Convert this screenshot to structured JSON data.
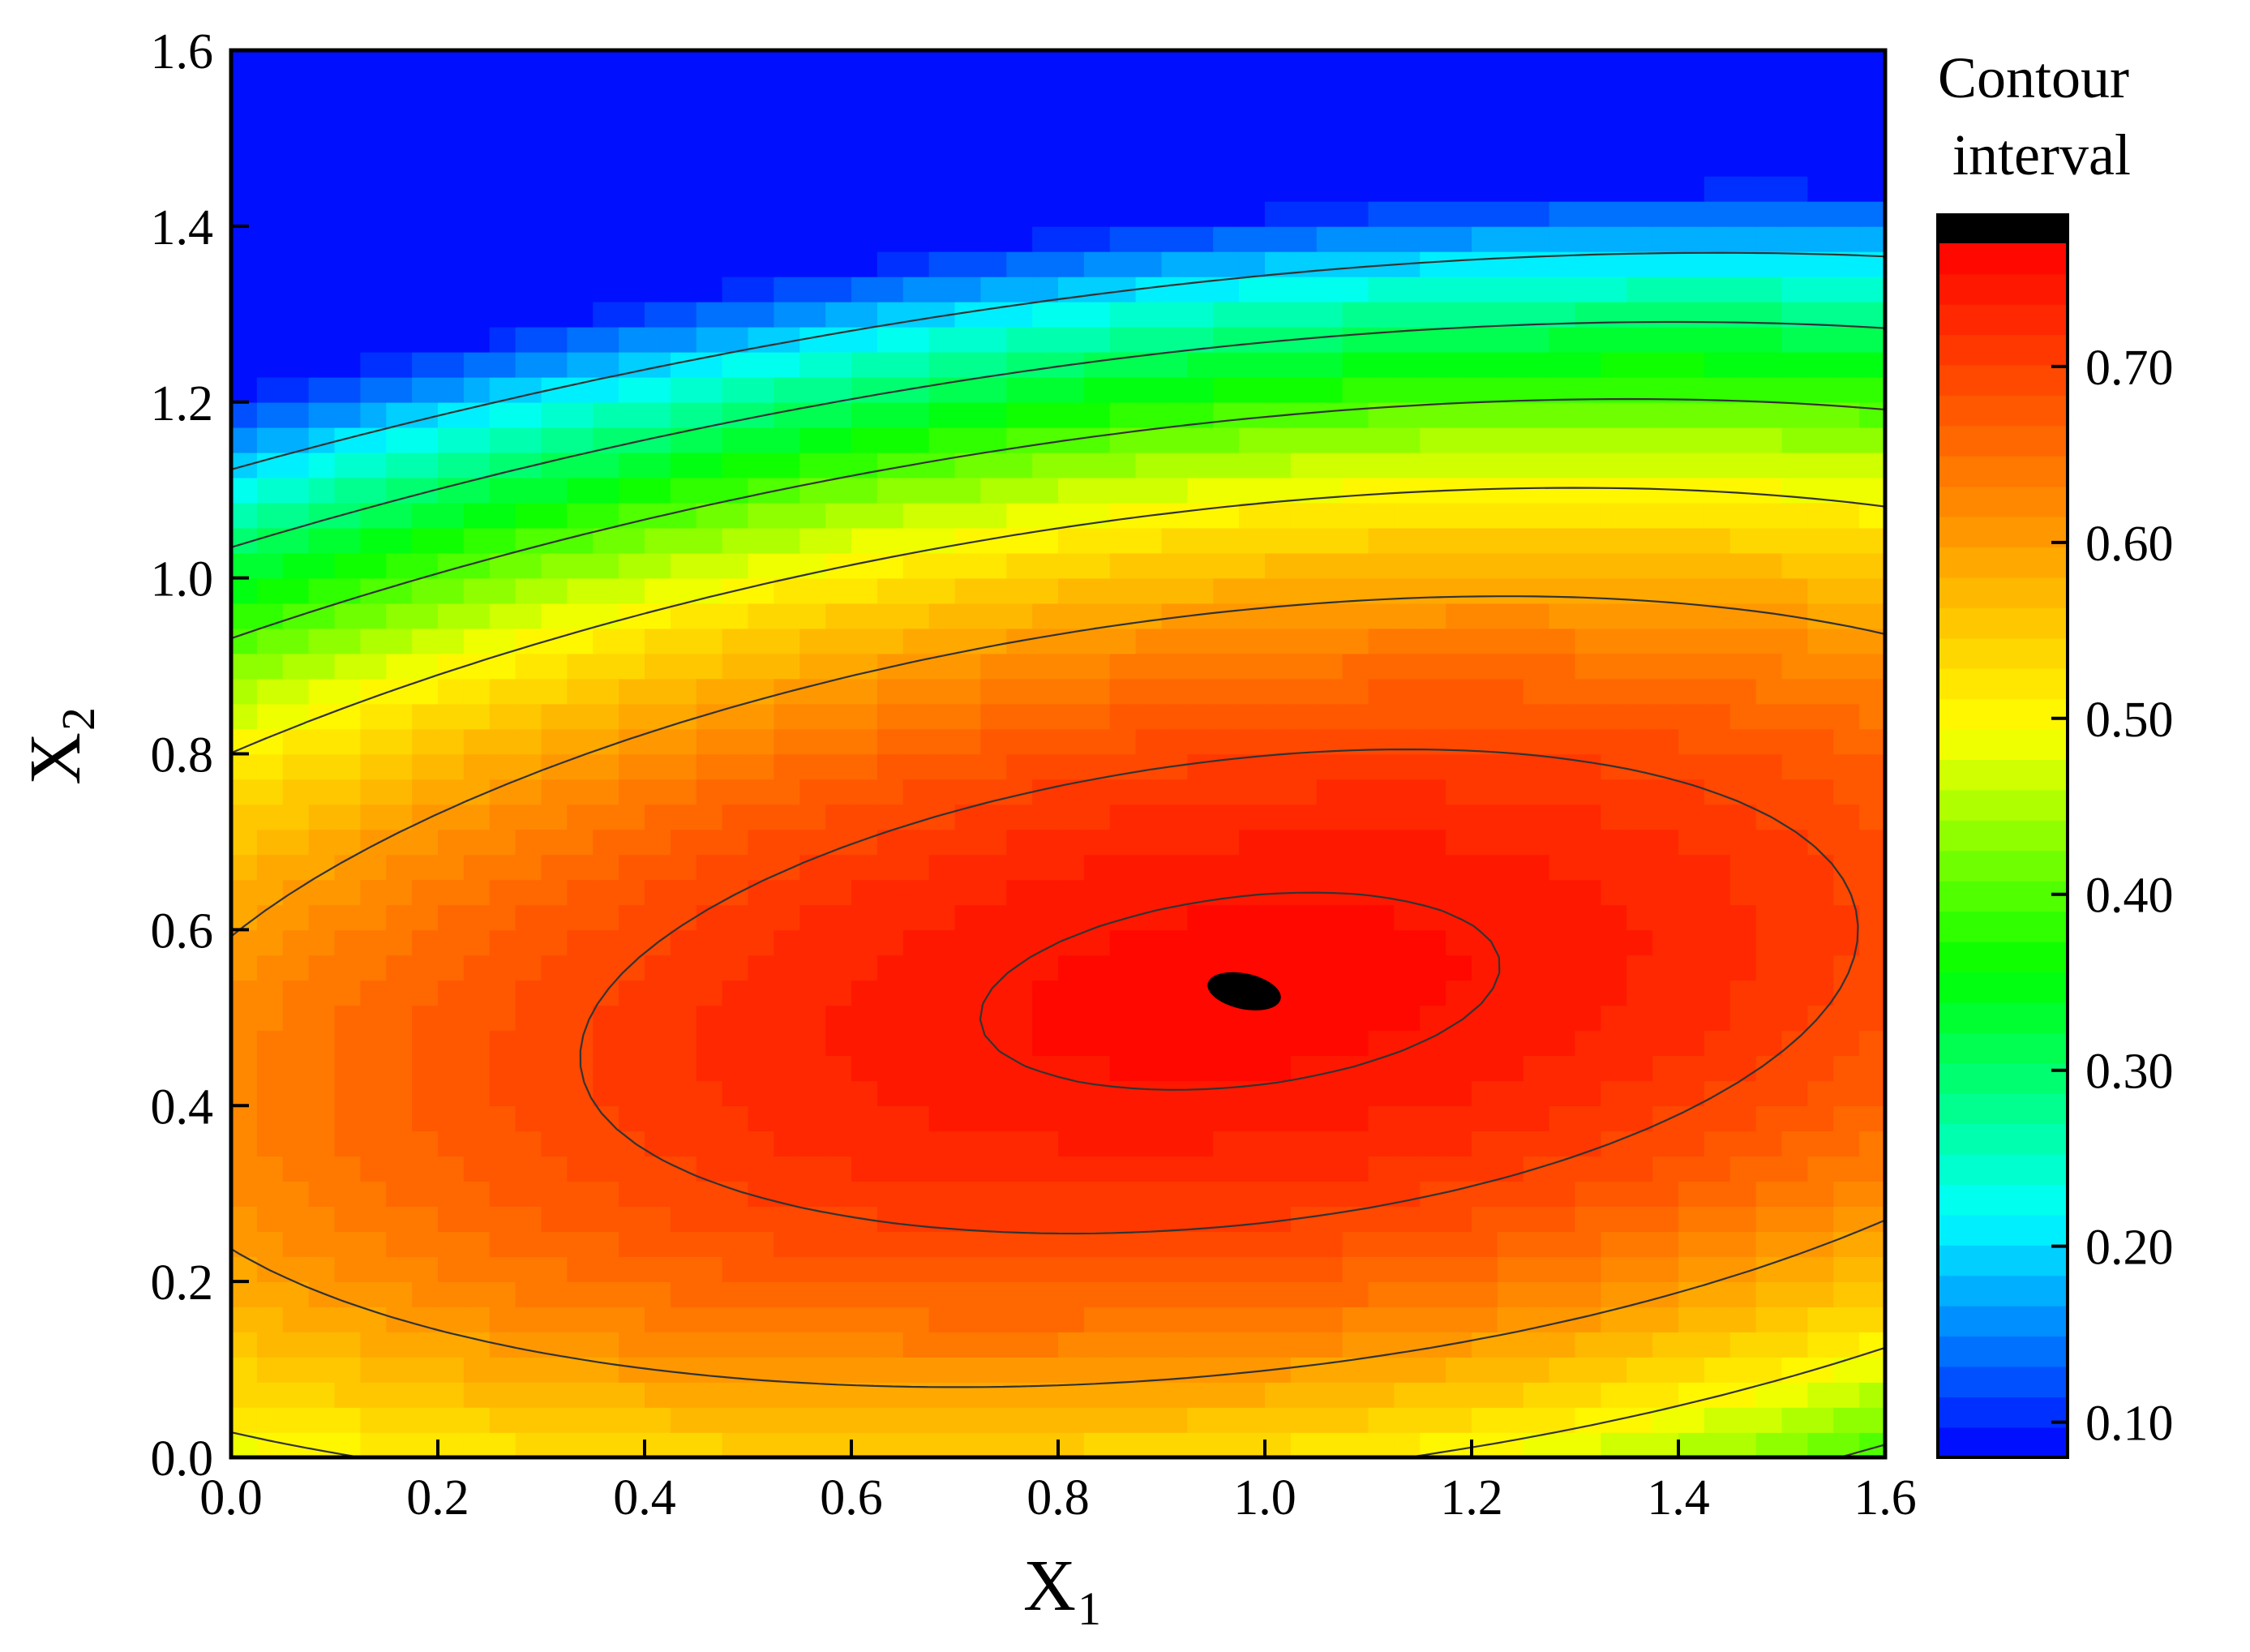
{
  "chart_data": {
    "type": "heatmap",
    "subtype": "filled-contour",
    "title": "",
    "xlabel": "X",
    "xlabel_subscript": "1",
    "ylabel": "X",
    "ylabel_subscript": "2",
    "xlim": [
      0.0,
      1.6
    ],
    "ylim": [
      0.0,
      1.6
    ],
    "x_ticks": [
      "0.0",
      "0.2",
      "0.4",
      "0.6",
      "0.8",
      "1.0",
      "1.2",
      "1.4",
      "1.6"
    ],
    "y_ticks": [
      "0.0",
      "0.2",
      "0.4",
      "0.6",
      "0.8",
      "1.0",
      "1.2",
      "1.4",
      "1.6"
    ],
    "grid": false,
    "colorbar": {
      "title_line1": "Contour",
      "title_line2": "interval",
      "range": [
        0.08,
        0.77
      ],
      "ticks": [
        {
          "value": 0.1,
          "label": "0.10"
        },
        {
          "value": 0.2,
          "label": "0.20"
        },
        {
          "value": 0.3,
          "label": "0.30"
        },
        {
          "value": 0.4,
          "label": "0.40"
        },
        {
          "value": 0.5,
          "label": "0.50"
        },
        {
          "value": 0.6,
          "label": "0.60"
        },
        {
          "value": 0.7,
          "label": "0.70"
        }
      ],
      "top_band_color": "#000000",
      "placement": "right"
    },
    "surface": {
      "peak_value": 0.76,
      "peak_x": 0.98,
      "peak_y": 0.53
    },
    "contour_levels": [
      0.2,
      0.3,
      0.4,
      0.5,
      0.6,
      0.7,
      0.75
    ],
    "colormap": [
      "#0000ff",
      "#00ffff",
      "#00ff00",
      "#ffff00",
      "#ff8000",
      "#ff0000"
    ]
  }
}
